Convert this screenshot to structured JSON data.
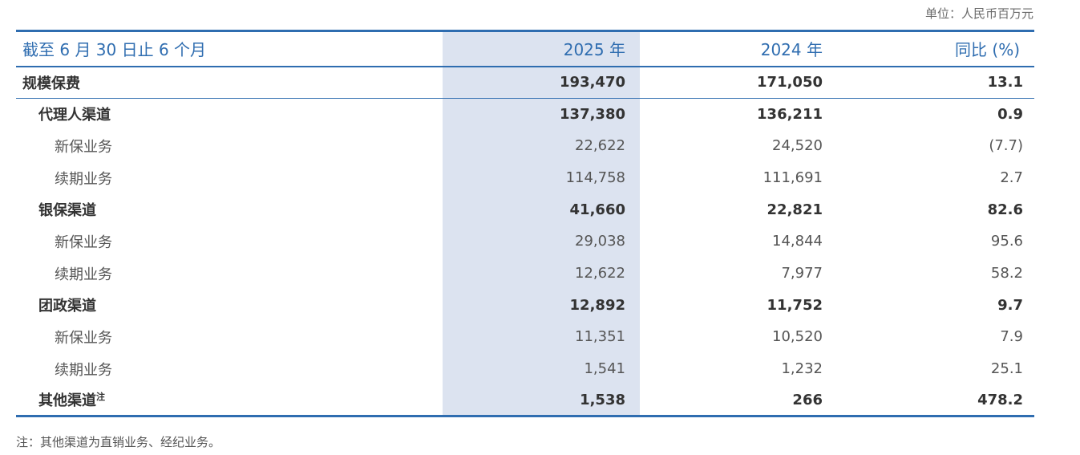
{
  "unit": "单位：人民币百万元",
  "header": {
    "period": "截至 6 月 30 日止 6 个月",
    "col_2025": "2025 年",
    "col_2024": "2024 年",
    "col_yoy": "同比 (%)"
  },
  "rows": [
    {
      "label": "规模保费",
      "v2025": "193,470",
      "v2024": "171,050",
      "yoy": "13.1"
    },
    {
      "label": "代理人渠道",
      "v2025": "137,380",
      "v2024": "136,211",
      "yoy": "0.9"
    },
    {
      "label": "新保业务",
      "v2025": "22,622",
      "v2024": "24,520",
      "yoy": "(7.7)"
    },
    {
      "label": "续期业务",
      "v2025": "114,758",
      "v2024": "111,691",
      "yoy": "2.7"
    },
    {
      "label": "银保渠道",
      "v2025": "41,660",
      "v2024": "22,821",
      "yoy": "82.6"
    },
    {
      "label": "新保业务",
      "v2025": "29,038",
      "v2024": "14,844",
      "yoy": "95.6"
    },
    {
      "label": "续期业务",
      "v2025": "12,622",
      "v2024": "7,977",
      "yoy": "58.2"
    },
    {
      "label": "团政渠道",
      "v2025": "12,892",
      "v2024": "11,752",
      "yoy": "9.7"
    },
    {
      "label": "新保业务",
      "v2025": "11,351",
      "v2024": "10,520",
      "yoy": "7.9"
    },
    {
      "label": "续期业务",
      "v2025": "1,541",
      "v2024": "1,232",
      "yoy": "25.1"
    },
    {
      "label": "其他渠道",
      "note_mark": "注",
      "v2025": "1,538",
      "v2024": "266",
      "yoy": "478.2"
    }
  ],
  "footnote": "注：其他渠道为直销业务、经纪业务。",
  "colors": {
    "accent": "#2f6db0",
    "highlight_column": "#dce3f0"
  }
}
